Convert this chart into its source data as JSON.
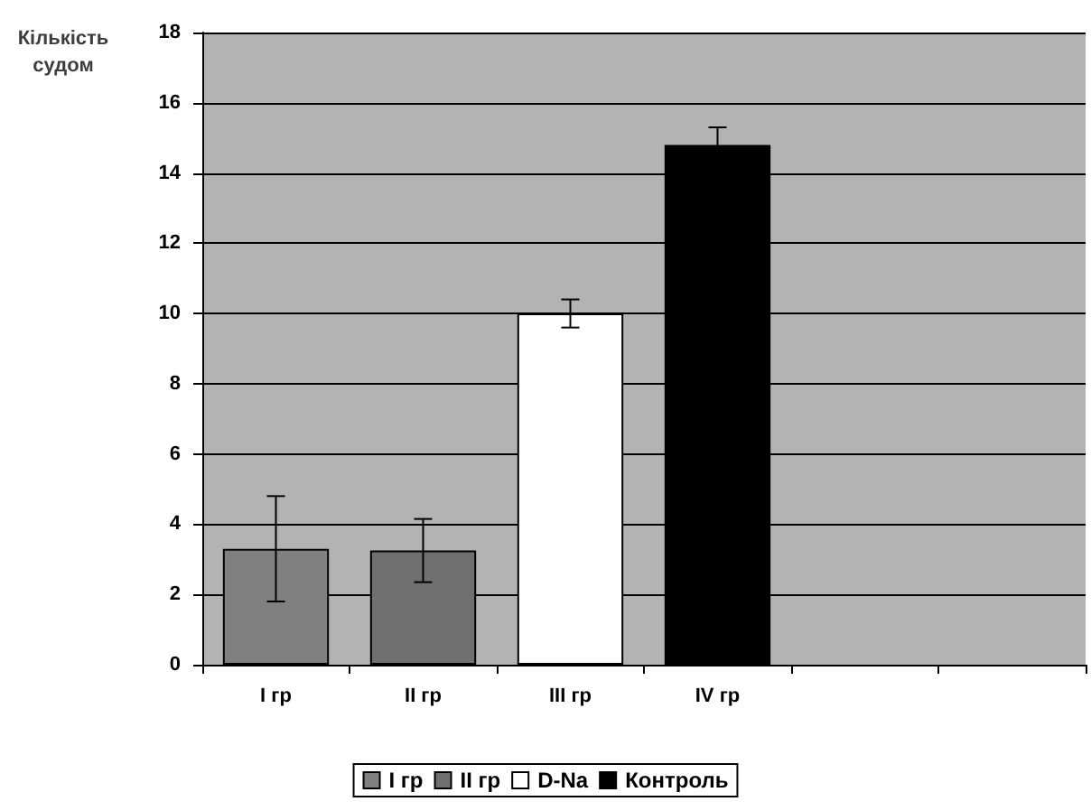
{
  "chart_data": {
    "type": "bar",
    "ylabel": "Кількість\nсудом",
    "categories": [
      "I гр",
      "II гр",
      "III гр",
      "IV гр",
      null,
      null
    ],
    "series": [
      {
        "name": "I гр",
        "color": "#808080",
        "values": [
          3.3,
          null,
          null,
          null,
          null,
          null
        ],
        "errors": [
          1.5,
          null,
          null,
          null,
          null,
          null
        ]
      },
      {
        "name": "II гр",
        "color": "#707070",
        "values": [
          null,
          3.25,
          null,
          null,
          null,
          null
        ],
        "errors": [
          null,
          0.9,
          null,
          null,
          null,
          null
        ]
      },
      {
        "name": "D-Na",
        "color": "#ffffff",
        "values": [
          null,
          null,
          10.0,
          null,
          null,
          null
        ],
        "errors": [
          null,
          null,
          0.4,
          null,
          null,
          null
        ]
      },
      {
        "name": "Контроль",
        "color": "#000000",
        "values": [
          null,
          null,
          null,
          14.8,
          null,
          null
        ],
        "errors": [
          null,
          null,
          null,
          0.5,
          null,
          null
        ]
      }
    ],
    "ylim": [
      0,
      18
    ],
    "yticks": [
      0,
      2,
      4,
      6,
      8,
      10,
      12,
      14,
      16,
      18
    ],
    "grid": "y",
    "legend": "bottom"
  }
}
